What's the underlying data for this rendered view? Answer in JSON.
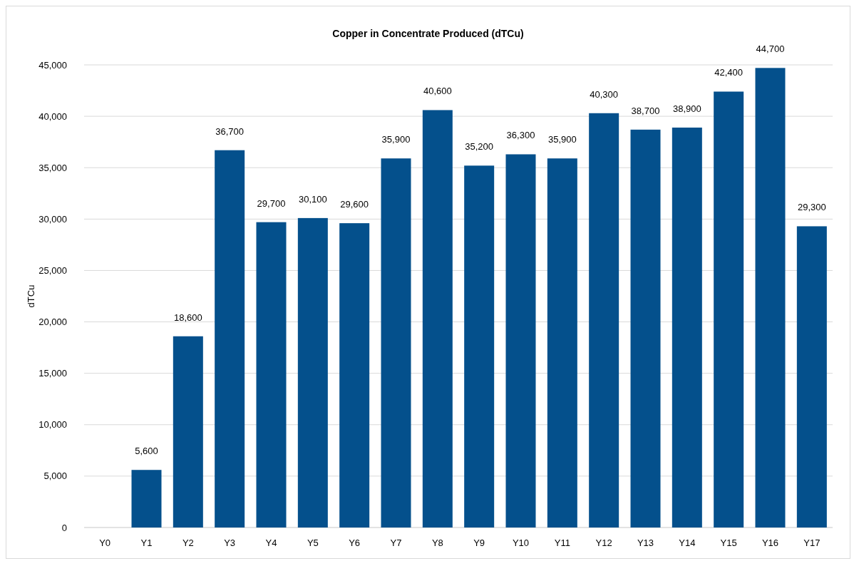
{
  "chart_data": {
    "type": "bar",
    "title": "Copper in Concentrate Produced (dTCu)",
    "ylabel": "dTCu",
    "categories": [
      "Y0",
      "Y1",
      "Y2",
      "Y3",
      "Y4",
      "Y5",
      "Y6",
      "Y7",
      "Y8",
      "Y9",
      "Y10",
      "Y11",
      "Y12",
      "Y13",
      "Y14",
      "Y15",
      "Y16",
      "Y17"
    ],
    "values": [
      0,
      5600,
      18600,
      36700,
      29700,
      30100,
      29600,
      35900,
      40600,
      35200,
      36300,
      35900,
      40300,
      38700,
      38900,
      42400,
      44700,
      29300
    ],
    "value_labels": [
      null,
      "5,600",
      "18,600",
      "36,700",
      "29,700",
      "30,100",
      "29,600",
      "35,900",
      "40,600",
      "35,200",
      "36,300",
      "35,900",
      "40,300",
      "38,700",
      "38,900",
      "42,400",
      "44,700",
      "29,300"
    ],
    "color": "#04508c",
    "ylim": [
      0,
      45000
    ],
    "yticks": [
      {
        "value": 0,
        "label": "0"
      },
      {
        "value": 5000,
        "label": "5,000"
      },
      {
        "value": 10000,
        "label": "10,000"
      },
      {
        "value": 15000,
        "label": "15,000"
      },
      {
        "value": 20000,
        "label": "20,000"
      },
      {
        "value": 25000,
        "label": "25,000"
      },
      {
        "value": 30000,
        "label": "30,000"
      },
      {
        "value": 35000,
        "label": "35,000"
      },
      {
        "value": 40000,
        "label": "40,000"
      },
      {
        "value": 45000,
        "label": "45,000"
      }
    ],
    "grid": "y"
  }
}
